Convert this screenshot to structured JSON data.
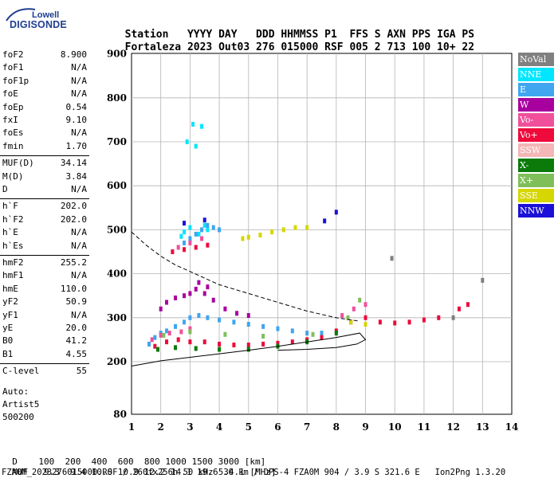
{
  "logo": {
    "brand": "Lowell",
    "name": "DIGISONDE"
  },
  "header": {
    "labels": [
      "Station",
      "YYYY",
      "DAY",
      "DDD",
      "HHMMSS",
      "P1",
      "FFS",
      "S",
      "AXN",
      "PPS",
      "IGA",
      "PS"
    ],
    "values": [
      "Fortaleza",
      "2023",
      "Out03",
      "276",
      "015000",
      "RSF",
      "005",
      "2",
      "713",
      "100",
      "10+",
      "22"
    ]
  },
  "params": [
    {
      "group": [
        {
          "name": "foF2",
          "value": "8.900"
        },
        {
          "name": "foF1",
          "value": "N/A"
        },
        {
          "name": "foF1p",
          "value": "N/A"
        },
        {
          "name": "foE",
          "value": "N/A"
        },
        {
          "name": "foEp",
          "value": "0.54"
        },
        {
          "name": "fxI",
          "value": "9.10"
        },
        {
          "name": "foEs",
          "value": "N/A"
        },
        {
          "name": "fmin",
          "value": "1.70"
        }
      ]
    },
    {
      "group": [
        {
          "name": "MUF(D)",
          "value": "34.14"
        },
        {
          "name": "M(D)",
          "value": "3.84"
        },
        {
          "name": "D",
          "value": "N/A"
        }
      ]
    },
    {
      "group": [
        {
          "name": "h`F",
          "value": "202.0"
        },
        {
          "name": "h`F2",
          "value": "202.0"
        },
        {
          "name": "h`E",
          "value": "N/A"
        },
        {
          "name": "h`Es",
          "value": "N/A"
        }
      ]
    },
    {
      "group": [
        {
          "name": "hmF2",
          "value": "255.2"
        },
        {
          "name": "hmF1",
          "value": "N/A"
        },
        {
          "name": "hmE",
          "value": "110.0"
        },
        {
          "name": "yF2",
          "value": "50.9"
        },
        {
          "name": "yF1",
          "value": "N/A"
        },
        {
          "name": "yE",
          "value": "20.0"
        },
        {
          "name": "B0",
          "value": "41.2"
        },
        {
          "name": "B1",
          "value": "4.55"
        }
      ]
    },
    {
      "group": [
        {
          "name": "C-level",
          "value": "55"
        }
      ]
    }
  ],
  "auto": {
    "label": "Auto:",
    "artist": "Artist5",
    "version": "500200"
  },
  "legend": [
    {
      "label": "NoVal",
      "color": "#808080"
    },
    {
      "label": "NNE",
      "color": "#00e6ff"
    },
    {
      "label": "E",
      "color": "#3fa6ef"
    },
    {
      "label": "W",
      "color": "#a8009f"
    },
    {
      "label": "Vo-",
      "color": "#f0509b"
    },
    {
      "label": "Vo+",
      "color": "#ee0a3a"
    },
    {
      "label": "SSW",
      "color": "#f4b6b6"
    },
    {
      "label": "X-",
      "color": "#0a7a0a"
    },
    {
      "label": "X+",
      "color": "#7fbf5a"
    },
    {
      "label": "SSE",
      "color": "#d6d600"
    },
    {
      "label": "NNW",
      "color": "#1a10d8"
    }
  ],
  "chart_data": {
    "type": "scatter",
    "xlim": [
      1,
      14
    ],
    "ylim": [
      80,
      900
    ],
    "x_ticks": [
      1,
      2,
      3,
      4,
      5,
      6,
      7,
      8,
      9,
      10,
      11,
      12,
      13,
      14
    ],
    "y_ticks": [
      80,
      200,
      300,
      400,
      500,
      600,
      700,
      800,
      900
    ],
    "grid": true,
    "legend_placement": "right",
    "series": [
      {
        "name": "NNE",
        "points": [
          [
            3.1,
            740
          ],
          [
            3.4,
            735
          ],
          [
            2.9,
            700
          ],
          [
            3.2,
            690
          ],
          [
            2.8,
            495
          ],
          [
            3.0,
            505
          ],
          [
            3.3,
            490
          ],
          [
            3.5,
            510
          ],
          [
            2.7,
            485
          ],
          [
            3.6,
            500
          ]
        ]
      },
      {
        "name": "E",
        "points": [
          [
            1.6,
            240
          ],
          [
            1.8,
            255
          ],
          [
            2.0,
            265
          ],
          [
            2.2,
            270
          ],
          [
            2.5,
            280
          ],
          [
            2.8,
            290
          ],
          [
            3.0,
            300
          ],
          [
            3.3,
            305
          ],
          [
            3.6,
            300
          ],
          [
            4.0,
            295
          ],
          [
            4.5,
            290
          ],
          [
            5.0,
            285
          ],
          [
            5.5,
            280
          ],
          [
            6.0,
            275
          ],
          [
            6.5,
            270
          ],
          [
            7.0,
            265
          ],
          [
            7.5,
            265
          ],
          [
            2.8,
            470
          ],
          [
            3.0,
            480
          ],
          [
            3.2,
            490
          ],
          [
            3.4,
            500
          ],
          [
            3.6,
            510
          ],
          [
            3.8,
            505
          ],
          [
            4.0,
            500
          ]
        ]
      },
      {
        "name": "W",
        "points": [
          [
            2.0,
            320
          ],
          [
            2.2,
            335
          ],
          [
            2.5,
            345
          ],
          [
            2.8,
            350
          ],
          [
            3.0,
            355
          ],
          [
            3.2,
            365
          ],
          [
            3.5,
            355
          ],
          [
            3.8,
            340
          ],
          [
            4.2,
            320
          ],
          [
            4.6,
            310
          ],
          [
            5.0,
            305
          ],
          [
            3.3,
            380
          ],
          [
            3.6,
            370
          ]
        ]
      },
      {
        "name": "Vo-",
        "points": [
          [
            1.7,
            250
          ],
          [
            2.0,
            260
          ],
          [
            2.3,
            265
          ],
          [
            2.7,
            268
          ],
          [
            3.0,
            275
          ],
          [
            2.6,
            460
          ],
          [
            3.0,
            470
          ],
          [
            3.4,
            480
          ],
          [
            8.2,
            305
          ],
          [
            8.6,
            320
          ],
          [
            9.0,
            330
          ]
        ]
      },
      {
        "name": "Vo+",
        "points": [
          [
            1.8,
            235
          ],
          [
            2.2,
            245
          ],
          [
            2.6,
            250
          ],
          [
            3.0,
            245
          ],
          [
            3.5,
            245
          ],
          [
            4.0,
            240
          ],
          [
            4.5,
            238
          ],
          [
            5.0,
            238
          ],
          [
            5.5,
            240
          ],
          [
            6.0,
            242
          ],
          [
            6.5,
            245
          ],
          [
            7.0,
            250
          ],
          [
            7.5,
            255
          ],
          [
            8.0,
            270
          ],
          [
            8.5,
            290
          ],
          [
            9.0,
            300
          ],
          [
            9.5,
            290
          ],
          [
            10.0,
            288
          ],
          [
            10.5,
            290
          ],
          [
            11.0,
            295
          ],
          [
            11.5,
            300
          ],
          [
            12.2,
            320
          ],
          [
            12.5,
            330
          ],
          [
            2.4,
            450
          ],
          [
            2.8,
            455
          ],
          [
            3.2,
            460
          ],
          [
            3.6,
            465
          ]
        ]
      },
      {
        "name": "X-",
        "points": [
          [
            1.9,
            228
          ],
          [
            2.5,
            232
          ],
          [
            3.2,
            230
          ],
          [
            4.0,
            228
          ],
          [
            5.0,
            228
          ],
          [
            6.0,
            235
          ],
          [
            7.0,
            245
          ],
          [
            8.0,
            265
          ]
        ]
      },
      {
        "name": "X+",
        "points": [
          [
            2.1,
            260
          ],
          [
            3.0,
            268
          ],
          [
            4.2,
            262
          ],
          [
            5.5,
            258
          ],
          [
            7.2,
            262
          ],
          [
            8.4,
            300
          ],
          [
            8.8,
            340
          ]
        ]
      },
      {
        "name": "SSE",
        "points": [
          [
            5.0,
            483
          ],
          [
            5.4,
            488
          ],
          [
            5.8,
            495
          ],
          [
            6.2,
            500
          ],
          [
            6.6,
            505
          ],
          [
            7.0,
            505
          ],
          [
            8.5,
            290
          ],
          [
            9.0,
            285
          ],
          [
            4.8,
            480
          ]
        ]
      },
      {
        "name": "NNW",
        "points": [
          [
            7.6,
            520
          ],
          [
            8.0,
            540
          ],
          [
            2.8,
            515
          ],
          [
            3.5,
            522
          ]
        ]
      },
      {
        "name": "NoVal",
        "points": [
          [
            9.9,
            435
          ],
          [
            13.0,
            385
          ],
          [
            12.0,
            300
          ]
        ]
      }
    ],
    "curves": [
      {
        "name": "dashed",
        "points": [
          [
            1,
            495
          ],
          [
            1.5,
            465
          ],
          [
            2,
            440
          ],
          [
            2.5,
            420
          ],
          [
            3,
            405
          ],
          [
            3.5,
            390
          ],
          [
            4,
            375
          ],
          [
            5,
            355
          ],
          [
            6,
            335
          ],
          [
            7,
            315
          ],
          [
            8,
            300
          ],
          [
            8.8,
            292
          ]
        ]
      },
      {
        "name": "solid",
        "points": [
          [
            1,
            190
          ],
          [
            2,
            202
          ],
          [
            3,
            210
          ],
          [
            4,
            218
          ],
          [
            5,
            226
          ],
          [
            6,
            235
          ],
          [
            7,
            245
          ],
          [
            8,
            255
          ],
          [
            8.8,
            265
          ],
          [
            9.0,
            250
          ],
          [
            8.7,
            240
          ],
          [
            8.0,
            232
          ],
          [
            7.0,
            228
          ],
          [
            6.0,
            226
          ]
        ]
      }
    ]
  },
  "bottom": {
    "d_label": "D",
    "d_values": [
      "100",
      "200",
      "400",
      "600",
      "800",
      "1000",
      "1500",
      "3000",
      "[km]"
    ],
    "muf_label": "MUF",
    "muf_values": [
      "9.3",
      "9.4",
      "10.0",
      "10.9",
      "12.2",
      "14.1",
      "19.6",
      "34.1",
      "[MHz]"
    ],
    "footer": "FZA0M_2023276015000.RSF / 260fx256h 50 kHz 5.0 km / DPS-4 FZA0M 904 / 3.9 S 321.6 E   Ion2Png 1.3.20"
  }
}
